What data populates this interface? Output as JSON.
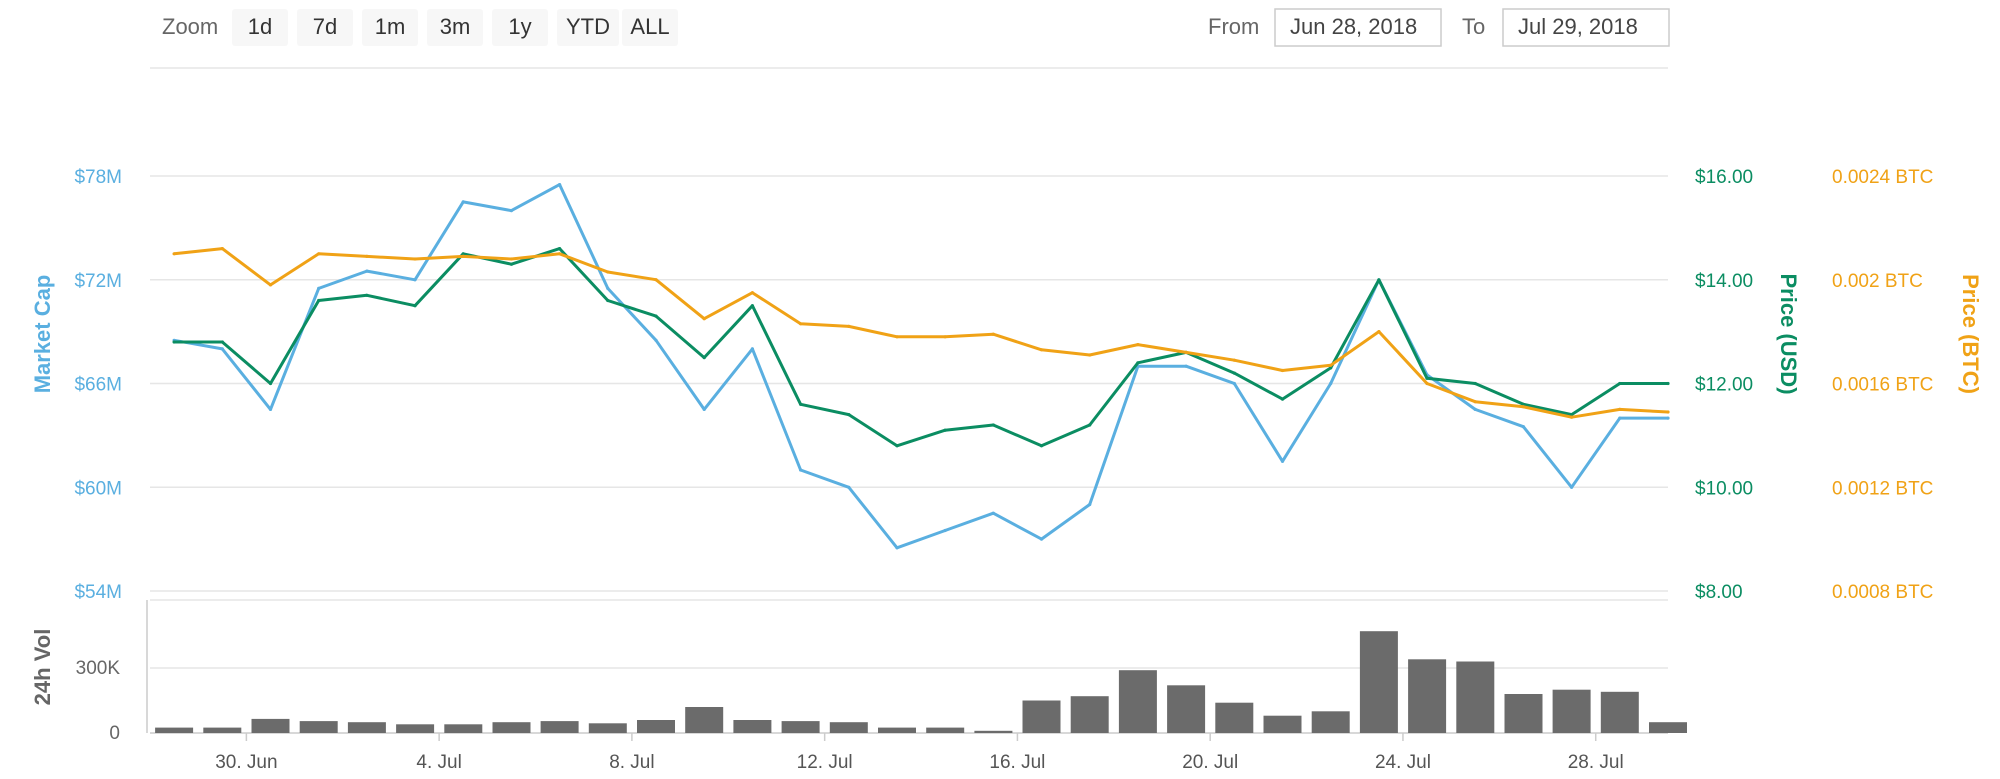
{
  "toolbar": {
    "zoom_label": "Zoom",
    "zoom_buttons": [
      "1d",
      "7d",
      "1m",
      "3m",
      "1y",
      "YTD",
      "ALL"
    ],
    "from_label": "From",
    "from_value": "Jun 28, 2018",
    "to_label": "To",
    "to_value": "Jul 29, 2018"
  },
  "colors": {
    "market_cap": "#5aafe0",
    "price_usd": "#0b8d62",
    "price_btc": "#f0a216",
    "volume": "#6b6b6b"
  },
  "chart_data": [
    {
      "type": "line",
      "x_range": [
        "2018-06-28",
        "2018-07-29"
      ],
      "x_ticks": [
        "30. Jun",
        "4. Jul",
        "8. Jul",
        "12. Jul",
        "16. Jul",
        "20. Jul",
        "24. Jul",
        "28. Jul"
      ],
      "y_axes": [
        {
          "title": "Market Cap",
          "ticks": [
            "$78M",
            "$72M",
            "$66M",
            "$60M",
            "$54M"
          ],
          "range": [
            54,
            78
          ],
          "side": "left"
        },
        {
          "title": "Price (USD)",
          "ticks": [
            "$16.00",
            "$14.00",
            "$12.00",
            "$10.00",
            "$8.00"
          ],
          "range": [
            8,
            16
          ],
          "side": "right"
        },
        {
          "title": "Price (BTC)",
          "ticks": [
            "0.0024 BTC",
            "0.002 BTC",
            "0.0016 BTC",
            "0.0012 BTC",
            "0.0008 BTC"
          ],
          "range": [
            0.0008,
            0.0024
          ],
          "side": "right"
        }
      ],
      "series": [
        {
          "key": "market_cap",
          "axis": 0,
          "x": [
            "2018-06-28",
            "2018-06-29",
            "2018-06-30",
            "2018-07-01",
            "2018-07-02",
            "2018-07-03",
            "2018-07-04",
            "2018-07-05",
            "2018-07-06",
            "2018-07-07",
            "2018-07-08",
            "2018-07-09",
            "2018-07-10",
            "2018-07-11",
            "2018-07-12",
            "2018-07-13",
            "2018-07-14",
            "2018-07-15",
            "2018-07-16",
            "2018-07-17",
            "2018-07-18",
            "2018-07-19",
            "2018-07-20",
            "2018-07-21",
            "2018-07-22",
            "2018-07-23",
            "2018-07-24",
            "2018-07-25",
            "2018-07-26",
            "2018-07-27",
            "2018-07-28",
            "2018-07-29"
          ],
          "values": [
            68.5,
            68.0,
            64.5,
            71.5,
            72.5,
            72.0,
            76.5,
            76.0,
            77.5,
            71.5,
            68.5,
            64.5,
            68.0,
            61.0,
            60.0,
            56.5,
            57.5,
            58.5,
            57.0,
            59.0,
            67.0,
            67.0,
            66.0,
            61.5,
            66.0,
            72.0,
            66.5,
            64.5,
            63.5,
            60.0,
            64.0,
            64.0
          ]
        },
        {
          "key": "price_usd",
          "axis": 1,
          "x": [
            "2018-06-28",
            "2018-06-29",
            "2018-06-30",
            "2018-07-01",
            "2018-07-02",
            "2018-07-03",
            "2018-07-04",
            "2018-07-05",
            "2018-07-06",
            "2018-07-07",
            "2018-07-08",
            "2018-07-09",
            "2018-07-10",
            "2018-07-11",
            "2018-07-12",
            "2018-07-13",
            "2018-07-14",
            "2018-07-15",
            "2018-07-16",
            "2018-07-17",
            "2018-07-18",
            "2018-07-19",
            "2018-07-20",
            "2018-07-21",
            "2018-07-22",
            "2018-07-23",
            "2018-07-24",
            "2018-07-25",
            "2018-07-26",
            "2018-07-27",
            "2018-07-28",
            "2018-07-29"
          ],
          "values": [
            12.8,
            12.8,
            12.0,
            13.6,
            13.7,
            13.5,
            14.5,
            14.3,
            14.6,
            13.6,
            13.3,
            12.5,
            13.5,
            11.6,
            11.4,
            10.8,
            11.1,
            11.2,
            10.8,
            11.2,
            12.4,
            12.6,
            12.2,
            11.7,
            12.3,
            14.0,
            12.1,
            12.0,
            11.6,
            11.4,
            12.0,
            12.0
          ]
        },
        {
          "key": "price_btc",
          "axis": 2,
          "x": [
            "2018-06-28",
            "2018-06-29",
            "2018-06-30",
            "2018-07-01",
            "2018-07-02",
            "2018-07-03",
            "2018-07-04",
            "2018-07-05",
            "2018-07-06",
            "2018-07-07",
            "2018-07-08",
            "2018-07-09",
            "2018-07-10",
            "2018-07-11",
            "2018-07-12",
            "2018-07-13",
            "2018-07-14",
            "2018-07-15",
            "2018-07-16",
            "2018-07-17",
            "2018-07-18",
            "2018-07-19",
            "2018-07-20",
            "2018-07-21",
            "2018-07-22",
            "2018-07-23",
            "2018-07-24",
            "2018-07-25",
            "2018-07-26",
            "2018-07-27",
            "2018-07-28",
            "2018-07-29"
          ],
          "values": [
            0.0021,
            0.00212,
            0.00198,
            0.0021,
            0.00209,
            0.00208,
            0.00209,
            0.00208,
            0.0021,
            0.00203,
            0.002,
            0.00185,
            0.00195,
            0.00183,
            0.00182,
            0.00178,
            0.00178,
            0.00179,
            0.00173,
            0.00171,
            0.00175,
            0.00172,
            0.00169,
            0.00165,
            0.00167,
            0.0018,
            0.0016,
            0.00153,
            0.00151,
            0.00147,
            0.0015,
            0.00149
          ]
        }
      ]
    },
    {
      "type": "bar",
      "y_axis": {
        "title": "24h Vol",
        "ticks": [
          "300K",
          "0"
        ],
        "range": [
          0,
          500000
        ]
      },
      "x": [
        "2018-06-28",
        "2018-06-29",
        "2018-06-30",
        "2018-07-01",
        "2018-07-02",
        "2018-07-03",
        "2018-07-04",
        "2018-07-05",
        "2018-07-06",
        "2018-07-07",
        "2018-07-08",
        "2018-07-09",
        "2018-07-10",
        "2018-07-11",
        "2018-07-12",
        "2018-07-13",
        "2018-07-14",
        "2018-07-15",
        "2018-07-16",
        "2018-07-17",
        "2018-07-18",
        "2018-07-19",
        "2018-07-20",
        "2018-07-21",
        "2018-07-22",
        "2018-07-23",
        "2018-07-24",
        "2018-07-25",
        "2018-07-26",
        "2018-07-27",
        "2018-07-28",
        "2018-07-29"
      ],
      "values": [
        25000,
        25000,
        65000,
        55000,
        50000,
        40000,
        40000,
        50000,
        55000,
        45000,
        60000,
        120000,
        60000,
        55000,
        50000,
        25000,
        25000,
        10000,
        150000,
        170000,
        290000,
        220000,
        140000,
        80000,
        100000,
        470000,
        340000,
        330000,
        180000,
        200000,
        190000,
        50000
      ]
    }
  ]
}
